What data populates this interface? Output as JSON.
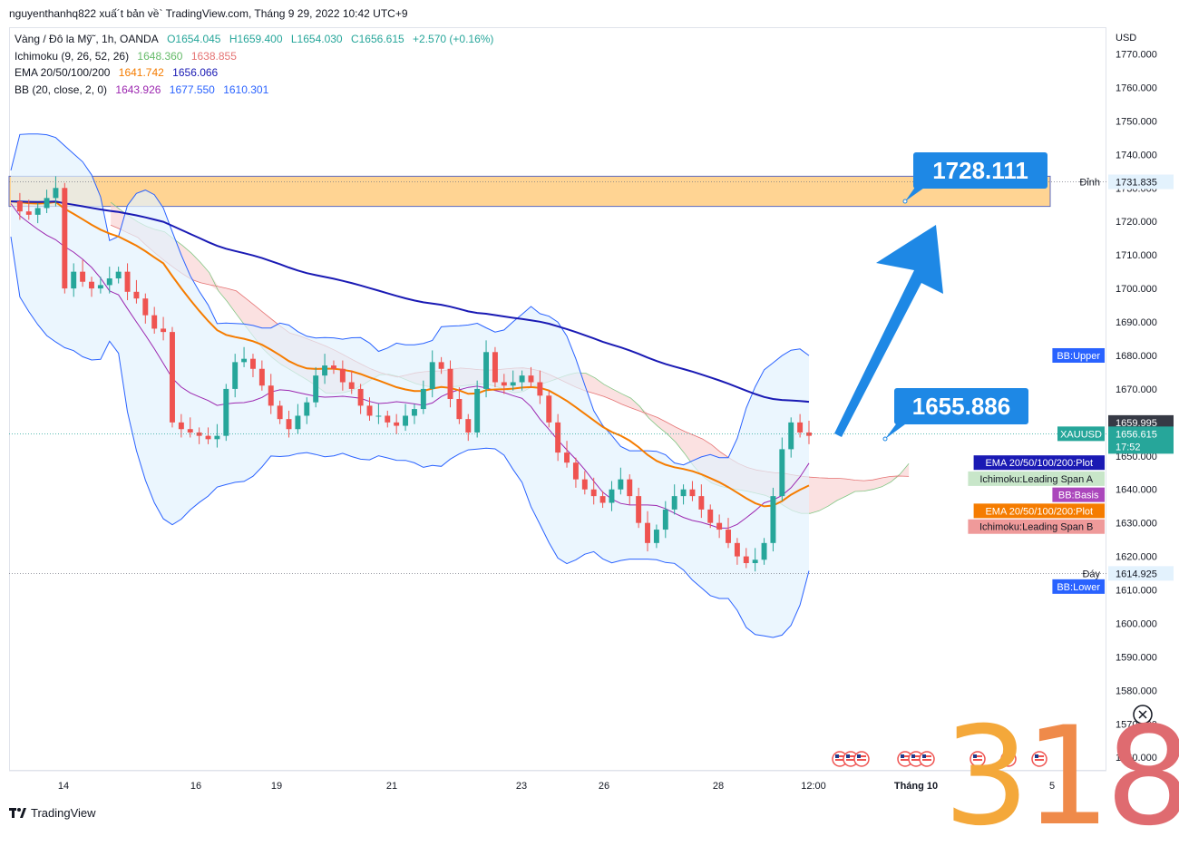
{
  "header": {
    "title": "nguyenthanhq822 xuấ´t bản về` TradingView.com, Tháng 9 29, 2022 10:42 UTC+9"
  },
  "legend": {
    "symbol": "Vàng / Đô la Mỹ˜, 1h, OANDA",
    "ohlc": [
      "O1654.045",
      "H1659.400",
      "L1654.030",
      "C1656.615",
      "+2.570 (+0.16%)"
    ],
    "ichimoku": {
      "label": "Ichimoku (9, 26, 52, 26)",
      "v1": "1648.360",
      "v2": "1638.855"
    },
    "ema": {
      "label": "EMA 20/50/100/200",
      "v1": "1641.742",
      "v2": "1656.066"
    },
    "bb": {
      "label": "BB (20, close, 2, 0)",
      "v1": "1643.926",
      "v2": "1677.550",
      "v3": "1610.301"
    }
  },
  "colors": {
    "up": "#26a69a",
    "down": "#ef5350",
    "ema_orange": "#f57c00",
    "ema_blue": "#1a1ab4",
    "bb_band": "#2962ff",
    "bb_basis": "#9c27b0",
    "zone": "#ffcc80",
    "arrow": "#1e88e5",
    "cloud_red": "#f8c8c8",
    "cloud_green": "#c8e6c9"
  },
  "chart_data": {
    "type": "candlestick",
    "currency": "USD",
    "y_ticks": [
      "1770.000",
      "1760.000",
      "1750.000",
      "1740.000",
      "1730.000",
      "1720.000",
      "1710.000",
      "1700.000",
      "1690.000",
      "1680.000",
      "1670.000",
      "1660.000",
      "1650.000",
      "1640.000",
      "1630.000",
      "1620.000",
      "1610.000",
      "1600.000",
      "1590.000",
      "1580.000",
      "1570.000",
      "1560.000"
    ],
    "ylim": [
      1556,
      1778
    ],
    "x_ticks": [
      "14",
      "16",
      "19",
      "21",
      "23",
      "26",
      "28",
      "12:00",
      "Tháng 10",
      "5"
    ],
    "close_path": [
      1726,
      1723,
      1722,
      1724,
      1727,
      1730,
      1700,
      1705,
      1702,
      1700,
      1701,
      1703,
      1705,
      1699,
      1697,
      1692,
      1688,
      1687,
      1660,
      1658,
      1657,
      1656,
      1655,
      1656,
      1670,
      1678,
      1679,
      1676,
      1671,
      1665,
      1661,
      1658,
      1662,
      1666,
      1674,
      1677,
      1676,
      1672,
      1670,
      1665,
      1662,
      1662,
      1660,
      1659,
      1662,
      1664,
      1670,
      1678,
      1676,
      1667,
      1661,
      1657,
      1670,
      1681,
      1672,
      1671,
      1672,
      1674,
      1672,
      1668,
      1660,
      1651,
      1648,
      1643,
      1640,
      1638,
      1636,
      1640,
      1643,
      1638,
      1630,
      1624,
      1628,
      1634,
      1638,
      1640,
      1638,
      1634,
      1630,
      1628,
      1624,
      1620,
      1618,
      1619,
      1624,
      1638,
      1652,
      1660,
      1657,
      1656
    ],
    "annotations": [
      {
        "label": "1728.111",
        "value": 1728.111
      },
      {
        "label": "1655.886",
        "value": 1655.886
      }
    ],
    "price_marks": [
      {
        "label": "Đỉnh",
        "value_label": "1731.835",
        "value": 1731.835
      },
      {
        "label": "Đáy",
        "value_label": "1614.925",
        "value": 1614.925
      },
      {
        "label": "",
        "value_label": "1659.995",
        "value": 1659.995
      },
      {
        "label": "XAUUSD",
        "value_label": "1656.615",
        "extra": "17:52",
        "value": 1656.615
      }
    ],
    "series_tags": [
      {
        "text": "BB:Upper",
        "value": 1680.0
      },
      {
        "text": "EMA 20/50/100/200:Plot",
        "value": 1648.0
      },
      {
        "text": "Ichimoku:Leading Span A",
        "value": 1643.2
      },
      {
        "text": "BB:Basis",
        "value": 1638.4
      },
      {
        "text": "EMA 20/50/100/200:Plot",
        "value": 1633.6
      },
      {
        "text": "Ichimoku:Leading Span B",
        "value": 1628.9
      },
      {
        "text": "BB:Lower",
        "value": 1611.0
      }
    ]
  },
  "footer": {
    "brand": "TradingView"
  },
  "watermark": {
    "d1": "3",
    "d2": "1",
    "d3": "8"
  },
  "icons": {
    "events": "flag-event-icon",
    "reset": "reset-scale-icon"
  }
}
